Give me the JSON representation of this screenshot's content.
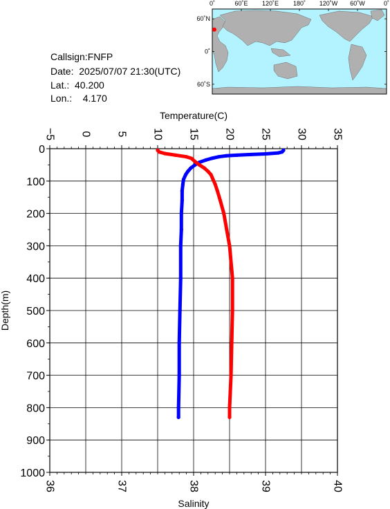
{
  "header": {
    "callsign": "Callsign:FNFP",
    "date": "Date:  2025/07/07 21:30(UTC)",
    "lat": "Lat.:  40.200",
    "lon": "Lon.:    4.170"
  },
  "map": {
    "lon_ticks": [
      "0˚",
      "60˚E",
      "120˚E",
      "180˚",
      "120˚W",
      "60˚W",
      "0˚"
    ],
    "lat_ticks": [
      "60˚N",
      "0˚",
      "60˚S"
    ],
    "station_lat": 40.2,
    "station_lon": 4.17,
    "ocean_color": "#b3f3ff",
    "land_color": "#b0b0b0",
    "marker_color": "#ff0000"
  },
  "chart_data": {
    "type": "line",
    "ylabel": "Depth(m)",
    "ylim": [
      0,
      1000
    ],
    "yticks": [
      "0",
      "100",
      "200",
      "300",
      "400",
      "500",
      "600",
      "700",
      "800",
      "900",
      "1000"
    ],
    "y_inverted": true,
    "grid": true,
    "top_axis": {
      "label": "Temperature(C)",
      "lim": [
        -5,
        35
      ],
      "ticks": [
        "−5",
        "0",
        "5",
        "10",
        "15",
        "20",
        "25",
        "30",
        "35"
      ]
    },
    "bottom_axis": {
      "label": "Salinity",
      "lim": [
        36,
        40
      ],
      "ticks": [
        "36",
        "37",
        "38",
        "39",
        "40"
      ]
    },
    "series": [
      {
        "quantity": "temperature",
        "axis": "top",
        "color": "#0000ff",
        "points": [
          [
            27.5,
            5
          ],
          [
            27.3,
            10
          ],
          [
            26.8,
            13
          ],
          [
            25.0,
            16
          ],
          [
            23.0,
            18
          ],
          [
            21.0,
            20
          ],
          [
            19.5,
            22
          ],
          [
            18.5,
            25
          ],
          [
            17.5,
            30
          ],
          [
            16.7,
            35
          ],
          [
            15.8,
            42
          ],
          [
            15.2,
            50
          ],
          [
            14.6,
            60
          ],
          [
            14.2,
            70
          ],
          [
            13.9,
            80
          ],
          [
            13.6,
            95
          ],
          [
            13.5,
            110
          ],
          [
            13.4,
            130
          ],
          [
            13.4,
            160
          ],
          [
            13.3,
            200
          ],
          [
            13.3,
            250
          ],
          [
            13.2,
            300
          ],
          [
            13.2,
            400
          ],
          [
            13.1,
            500
          ],
          [
            13.0,
            600
          ],
          [
            13.0,
            700
          ],
          [
            12.9,
            800
          ],
          [
            12.9,
            830
          ]
        ]
      },
      {
        "quantity": "salinity",
        "axis": "bottom",
        "color": "#ff0000",
        "points": [
          [
            37.5,
            5
          ],
          [
            37.52,
            10
          ],
          [
            37.6,
            15
          ],
          [
            37.75,
            20
          ],
          [
            37.9,
            25
          ],
          [
            37.97,
            30
          ],
          [
            38.02,
            40
          ],
          [
            38.08,
            50
          ],
          [
            38.15,
            60
          ],
          [
            38.2,
            70
          ],
          [
            38.24,
            80
          ],
          [
            38.27,
            95
          ],
          [
            38.3,
            110
          ],
          [
            38.33,
            130
          ],
          [
            38.37,
            160
          ],
          [
            38.42,
            200
          ],
          [
            38.46,
            250
          ],
          [
            38.5,
            300
          ],
          [
            38.54,
            400
          ],
          [
            38.54,
            500
          ],
          [
            38.53,
            600
          ],
          [
            38.52,
            700
          ],
          [
            38.5,
            800
          ],
          [
            38.5,
            830
          ]
        ]
      }
    ]
  }
}
